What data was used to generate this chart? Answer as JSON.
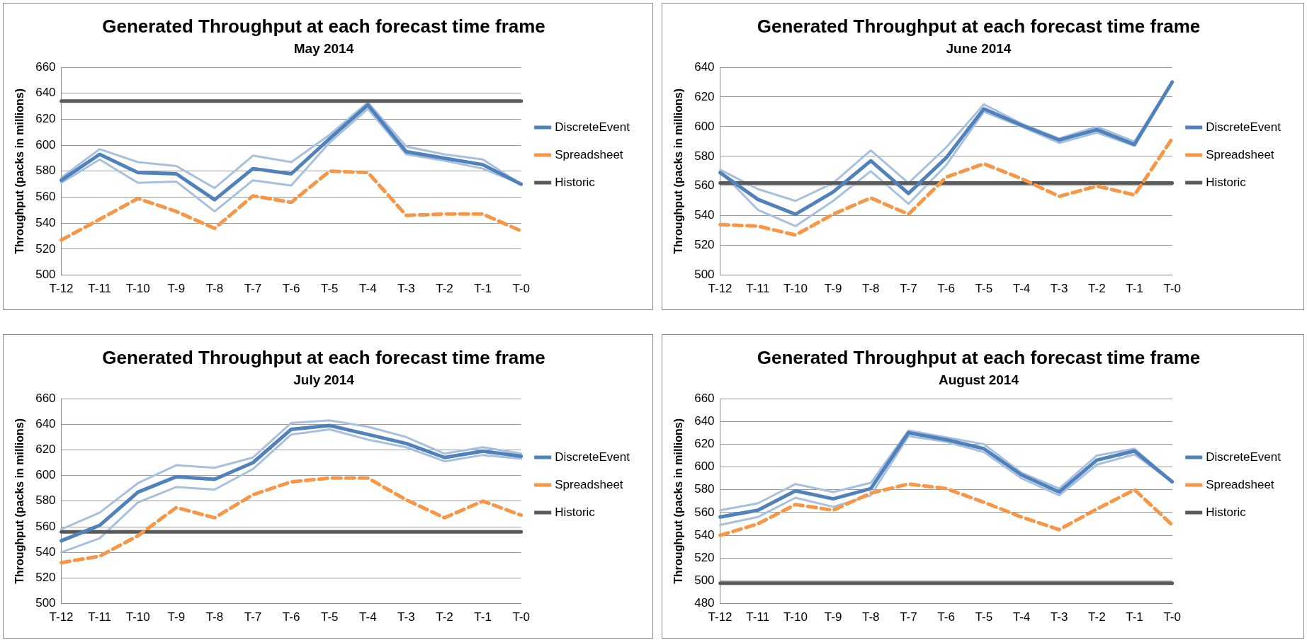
{
  "chart_data": [
    {
      "type": "line",
      "title": "Generated Throughput at each forecast time frame",
      "subtitle": "May 2014",
      "ylabel": "Throughput (packs in millions)",
      "categories": [
        "T-12",
        "T-11",
        "T-10",
        "T-9",
        "T-8",
        "T-7",
        "T-6",
        "T-5",
        "T-4",
        "T-3",
        "T-2",
        "T-1",
        "T-0"
      ],
      "ylim": [
        500,
        660
      ],
      "yticks": [
        500,
        520,
        540,
        560,
        580,
        600,
        620,
        640,
        660
      ],
      "grid": "y",
      "legend": "right",
      "marker": "none",
      "series": [
        {
          "color": "#a7c0de",
          "values": [
            571,
            589,
            571,
            572,
            549,
            573,
            569,
            602,
            628,
            593,
            588,
            582,
            570
          ]
        },
        {
          "color": "#a7c0de",
          "values": [
            575,
            597,
            587,
            584,
            567,
            592,
            587,
            608,
            633,
            599,
            593,
            589,
            570
          ]
        },
        {
          "name": "DiscreteEvent",
          "color": "#4f81bd",
          "values": [
            573,
            593,
            579,
            578,
            558,
            582,
            578,
            605,
            631,
            595,
            590,
            585,
            570
          ]
        },
        {
          "name": "Spreadsheet",
          "color": "#f79646",
          "line_style": "dashed",
          "values": [
            527,
            543,
            559,
            549,
            536,
            561,
            556,
            580,
            579,
            546,
            547,
            547,
            534
          ]
        },
        {
          "name": "Historic",
          "color": "#595959",
          "values": [
            634,
            634,
            634,
            634,
            634,
            634,
            634,
            634,
            634,
            634,
            634,
            634,
            634
          ]
        }
      ]
    },
    {
      "type": "line",
      "title": "Generated Throughput at each forecast time frame",
      "subtitle": "June 2014",
      "ylabel": "Throughput (packs in millions)",
      "categories": [
        "T-12",
        "T-11",
        "T-10",
        "T-9",
        "T-8",
        "T-7",
        "T-6",
        "T-5",
        "T-4",
        "T-3",
        "T-2",
        "T-1",
        "T-0"
      ],
      "ylim": [
        500,
        640
      ],
      "yticks": [
        500,
        520,
        540,
        560,
        580,
        600,
        620,
        640
      ],
      "grid": "y",
      "legend": "right",
      "marker": "none",
      "series": [
        {
          "color": "#a7c0de",
          "values": [
            570,
            544,
            533,
            550,
            570,
            548,
            574,
            610,
            600,
            589,
            596,
            587,
            630
          ]
        },
        {
          "color": "#a7c0de",
          "values": [
            571,
            558,
            550,
            562,
            584,
            562,
            586,
            615,
            602,
            592,
            600,
            590,
            630
          ]
        },
        {
          "name": "DiscreteEvent",
          "color": "#4f81bd",
          "values": [
            569,
            551,
            541,
            556,
            577,
            555,
            579,
            612,
            601,
            591,
            598,
            588,
            630
          ]
        },
        {
          "name": "Spreadsheet",
          "color": "#f79646",
          "line_style": "dashed",
          "values": [
            534,
            533,
            527,
            541,
            552,
            541,
            566,
            575,
            565,
            553,
            560,
            554,
            592
          ]
        },
        {
          "name": "Historic",
          "color": "#595959",
          "values": [
            562,
            562,
            562,
            562,
            562,
            562,
            562,
            562,
            562,
            562,
            562,
            562,
            562
          ]
        }
      ]
    },
    {
      "type": "line",
      "title": "Generated Throughput at each forecast time frame",
      "subtitle": "July 2014",
      "ylabel": "Throughput (packs in millions)",
      "categories": [
        "T-12",
        "T-11",
        "T-10",
        "T-9",
        "T-8",
        "T-7",
        "T-6",
        "T-5",
        "T-4",
        "T-3",
        "T-2",
        "T-1",
        "T-0"
      ],
      "ylim": [
        500,
        660
      ],
      "yticks": [
        500,
        520,
        540,
        560,
        580,
        600,
        620,
        640,
        660
      ],
      "grid": "y",
      "legend": "right",
      "marker": "none",
      "series": [
        {
          "color": "#a7c0de",
          "values": [
            540,
            551,
            579,
            591,
            589,
            605,
            632,
            636,
            628,
            622,
            611,
            616,
            613
          ]
        },
        {
          "color": "#a7c0de",
          "values": [
            558,
            571,
            594,
            608,
            606,
            614,
            641,
            643,
            638,
            630,
            617,
            622,
            617
          ]
        },
        {
          "name": "DiscreteEvent",
          "color": "#4f81bd",
          "values": [
            549,
            561,
            587,
            599,
            597,
            610,
            636,
            639,
            632,
            625,
            614,
            619,
            615
          ]
        },
        {
          "name": "Spreadsheet",
          "color": "#f79646",
          "line_style": "dashed",
          "values": [
            532,
            537,
            553,
            575,
            567,
            585,
            595,
            598,
            598,
            581,
            567,
            580,
            569
          ]
        },
        {
          "name": "Historic",
          "color": "#595959",
          "values": [
            556,
            556,
            556,
            556,
            556,
            556,
            556,
            556,
            556,
            556,
            556,
            556,
            556
          ]
        }
      ]
    },
    {
      "type": "line",
      "title": "Generated Throughput at each forecast time frame",
      "subtitle": "August 2014",
      "ylabel": "Throughput (packs in millions)",
      "categories": [
        "T-12",
        "T-11",
        "T-10",
        "T-9",
        "T-8",
        "T-7",
        "T-6",
        "T-5",
        "T-4",
        "T-3",
        "T-2",
        "T-1",
        "T-0"
      ],
      "ylim": [
        480,
        660
      ],
      "yticks": [
        480,
        500,
        520,
        540,
        560,
        580,
        600,
        620,
        640,
        660
      ],
      "grid": "y",
      "legend": "right",
      "marker": "none",
      "series": [
        {
          "color": "#a7c0de",
          "values": [
            549,
            556,
            573,
            565,
            575,
            627,
            622,
            613,
            590,
            575,
            602,
            611,
            587
          ]
        },
        {
          "color": "#a7c0de",
          "values": [
            562,
            568,
            585,
            578,
            586,
            632,
            626,
            620,
            595,
            581,
            610,
            616,
            587
          ]
        },
        {
          "name": "DiscreteEvent",
          "color": "#4f81bd",
          "values": [
            556,
            562,
            579,
            572,
            581,
            630,
            624,
            616,
            593,
            578,
            606,
            614,
            587
          ]
        },
        {
          "name": "Spreadsheet",
          "color": "#f79646",
          "line_style": "dashed",
          "values": [
            540,
            550,
            567,
            562,
            577,
            585,
            581,
            569,
            556,
            545,
            563,
            580,
            549
          ]
        },
        {
          "name": "Historic",
          "color": "#595959",
          "values": [
            498,
            498,
            498,
            498,
            498,
            498,
            498,
            498,
            498,
            498,
            498,
            498,
            498
          ]
        }
      ]
    }
  ]
}
